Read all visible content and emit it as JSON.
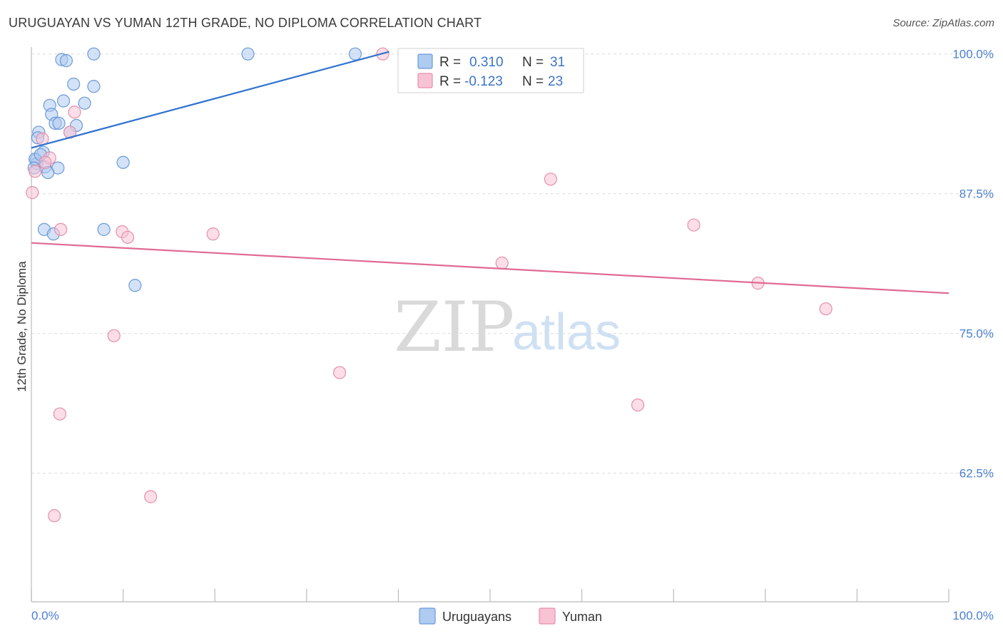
{
  "title": "URUGUAYAN VS YUMAN 12TH GRADE, NO DIPLOMA CORRELATION CHART",
  "source": "Source: ZipAtlas.com",
  "watermark": {
    "zip": "ZIP",
    "atlas": "atlas"
  },
  "colors": {
    "uruguayans_fill": "#aecbf0",
    "uruguayans_stroke": "#6c9ad8",
    "uruguayans_line": "#2f72d0",
    "yuman_fill": "#f7c3d3",
    "yuman_stroke": "#e58fac",
    "yuman_line": "#e06a95",
    "tick_text": "#4a7fd0"
  },
  "legend": {
    "rows": [
      {
        "r_label": "R =",
        "r_value": "0.310",
        "n_label": "N =",
        "n_value": "31"
      },
      {
        "r_label": "R =",
        "r_value": "-0.123",
        "n_label": "N =",
        "n_value": "23"
      }
    ]
  },
  "bottom_legend": [
    "Uruguayans",
    "Yuman"
  ],
  "chart_data": {
    "type": "scatter",
    "title": "URUGUAYAN VS YUMAN 12TH GRADE, NO DIPLOMA CORRELATION CHART",
    "xlabel": "",
    "ylabel": "12th Grade, No Diploma",
    "xlim": [
      0,
      100
    ],
    "ylim": [
      51,
      101
    ],
    "x_tick_labels": [
      "0.0%",
      "100.0%"
    ],
    "y_ticks": [
      62.5,
      75.0,
      87.5,
      100.0
    ],
    "y_tick_labels": [
      "62.5%",
      "75.0%",
      "87.5%",
      "100.0%"
    ],
    "grid": "horizontal dashed",
    "legend_position": "top-center",
    "series": [
      {
        "name": "Uruguayans",
        "r": 0.31,
        "n": 31,
        "trend": {
          "x": [
            0,
            39
          ],
          "y": [
            91.6,
            100.2
          ]
        },
        "points": [
          {
            "x": 3.3,
            "y": 99.5
          },
          {
            "x": 3.8,
            "y": 99.4
          },
          {
            "x": 6.8,
            "y": 100.0
          },
          {
            "x": 23.6,
            "y": 100.0
          },
          {
            "x": 35.3,
            "y": 100.0
          },
          {
            "x": 4.6,
            "y": 97.3
          },
          {
            "x": 6.8,
            "y": 97.1
          },
          {
            "x": 3.5,
            "y": 95.8
          },
          {
            "x": 5.8,
            "y": 95.6
          },
          {
            "x": 2.0,
            "y": 95.4
          },
          {
            "x": 2.2,
            "y": 94.6
          },
          {
            "x": 2.6,
            "y": 93.8
          },
          {
            "x": 3.0,
            "y": 93.8
          },
          {
            "x": 4.9,
            "y": 93.6
          },
          {
            "x": 0.8,
            "y": 93.0
          },
          {
            "x": 4.2,
            "y": 93.0
          },
          {
            "x": 0.7,
            "y": 92.5
          },
          {
            "x": 1.3,
            "y": 91.2
          },
          {
            "x": 0.5,
            "y": 90.5
          },
          {
            "x": 0.6,
            "y": 90.2
          },
          {
            "x": 1.5,
            "y": 89.9
          },
          {
            "x": 2.9,
            "y": 89.8
          },
          {
            "x": 1.8,
            "y": 89.4
          },
          {
            "x": 10.0,
            "y": 90.3
          },
          {
            "x": 1.4,
            "y": 84.3
          },
          {
            "x": 2.4,
            "y": 83.9
          },
          {
            "x": 7.9,
            "y": 84.3
          },
          {
            "x": 11.3,
            "y": 79.3
          },
          {
            "x": 0.4,
            "y": 90.6
          },
          {
            "x": 1.0,
            "y": 91.0
          },
          {
            "x": 0.3,
            "y": 89.8
          }
        ]
      },
      {
        "name": "Yuman",
        "r": -0.123,
        "n": 23,
        "trend": {
          "x": [
            0,
            100
          ],
          "y": [
            83.1,
            78.6
          ]
        },
        "points": [
          {
            "x": 38.3,
            "y": 100.0
          },
          {
            "x": 4.7,
            "y": 94.8
          },
          {
            "x": 1.2,
            "y": 92.4
          },
          {
            "x": 4.2,
            "y": 93.0
          },
          {
            "x": 2.0,
            "y": 90.7
          },
          {
            "x": 1.5,
            "y": 90.3
          },
          {
            "x": 0.4,
            "y": 89.5
          },
          {
            "x": 0.1,
            "y": 87.6
          },
          {
            "x": 56.6,
            "y": 88.8
          },
          {
            "x": 3.2,
            "y": 84.3
          },
          {
            "x": 9.9,
            "y": 84.1
          },
          {
            "x": 10.5,
            "y": 83.6
          },
          {
            "x": 19.8,
            "y": 83.9
          },
          {
            "x": 72.2,
            "y": 84.7
          },
          {
            "x": 51.3,
            "y": 81.3
          },
          {
            "x": 79.2,
            "y": 79.5
          },
          {
            "x": 86.6,
            "y": 77.2
          },
          {
            "x": 9.0,
            "y": 74.8
          },
          {
            "x": 33.6,
            "y": 71.5
          },
          {
            "x": 66.1,
            "y": 68.6
          },
          {
            "x": 3.1,
            "y": 67.8
          },
          {
            "x": 13.0,
            "y": 60.4
          },
          {
            "x": 2.5,
            "y": 58.7
          }
        ]
      }
    ]
  }
}
